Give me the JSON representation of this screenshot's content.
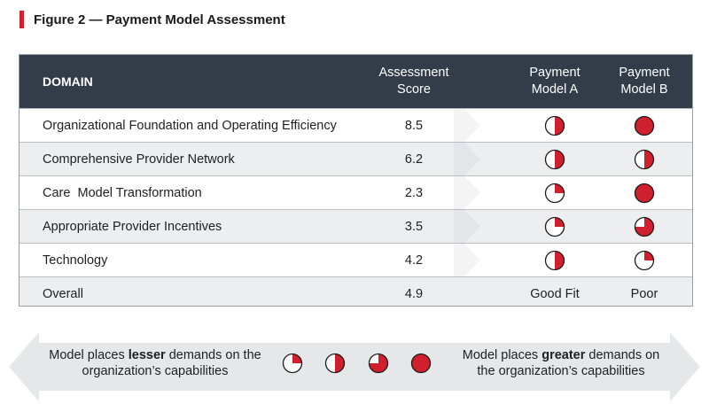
{
  "figure": {
    "title": "Figure 2 — Payment Model Assessment"
  },
  "table": {
    "headers": {
      "domain": "DOMAIN",
      "score_line1": "Assessment",
      "score_line2": "Score",
      "model_a_line1": "Payment",
      "model_a_line2": "Model A",
      "model_b_line1": "Payment",
      "model_b_line2": "Model B"
    },
    "rows": [
      {
        "domain": "Organizational Foundation and Operating Efficiency",
        "score": "8.5",
        "model_a": 0.5,
        "model_b": 1.0
      },
      {
        "domain": "Comprehensive Provider Network",
        "score": "6.2",
        "model_a": 0.5,
        "model_b": 0.5
      },
      {
        "domain": "Care  Model Transformation",
        "score": "2.3",
        "model_a": 0.25,
        "model_b": 1.0
      },
      {
        "domain": "Appropriate Provider Incentives",
        "score": "3.5",
        "model_a": 0.25,
        "model_b": 0.75
      },
      {
        "domain": "Technology",
        "score": "4.2",
        "model_a": 0.5,
        "model_b": 0.25
      }
    ],
    "overall": {
      "domain": "Overall",
      "score": "4.9",
      "model_a": "Good Fit",
      "model_b": "Poor"
    }
  },
  "legend": {
    "left_pre": "Model places ",
    "left_bold": "lesser",
    "left_post": " demands on the",
    "left_line2": "organization’s capabilities",
    "right_pre": "Model places ",
    "right_bold": "greater",
    "right_post": " demands on",
    "right_line2": "the organization’s capabilities",
    "levels": [
      0.25,
      0.5,
      0.75,
      1.0
    ]
  },
  "colors": {
    "header_bg": "#333d49",
    "accent_red": "#d0202e",
    "alt_row": "#edeef0",
    "arrow_gray": "#e6e7e9"
  }
}
